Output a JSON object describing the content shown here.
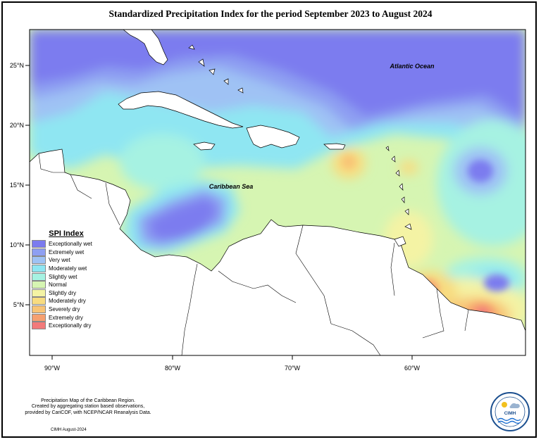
{
  "title": "Standardized Precipitation Index for the period September 2023 to August 2024",
  "map": {
    "lat_labels": [
      "25°N",
      "20°N",
      "15°N",
      "10°N",
      "5°N"
    ],
    "lon_labels": [
      "90°W",
      "80°W",
      "70°W",
      "60°W"
    ],
    "place_labels": {
      "atlantic": "Atlantic Ocean",
      "caribbean": "Caribbean Sea"
    }
  },
  "legend": {
    "title": "SPI Index",
    "items": [
      {
        "label": "Exceptionally wet",
        "color": "#7b7bef"
      },
      {
        "label": "Extremely wet",
        "color": "#8e9ff2"
      },
      {
        "label": "Very wet",
        "color": "#9fc2f4"
      },
      {
        "label": "Moderately wet",
        "color": "#8fe6f2"
      },
      {
        "label": "Slightly wet",
        "color": "#a6f2e2"
      },
      {
        "label": "Normal",
        "color": "#d6f5b2"
      },
      {
        "label": "Slightly dry",
        "color": "#f4f3a4"
      },
      {
        "label": "Moderately dry",
        "color": "#f8dc80"
      },
      {
        "label": "Severely dry",
        "color": "#f8c476"
      },
      {
        "label": "Extremely dry",
        "color": "#f6a070"
      },
      {
        "label": "Exceptionally dry",
        "color": "#f27a7a"
      }
    ]
  },
  "notes": [
    "Precipitation Map of the Caribbean Region.",
    "Created by aggregating station based observations,",
    "provided by CariCOF, with NCEP/NCAR Reanalysis Data."
  ],
  "credit": "CIMH August-2024",
  "logo": {
    "text": "CIMH"
  }
}
